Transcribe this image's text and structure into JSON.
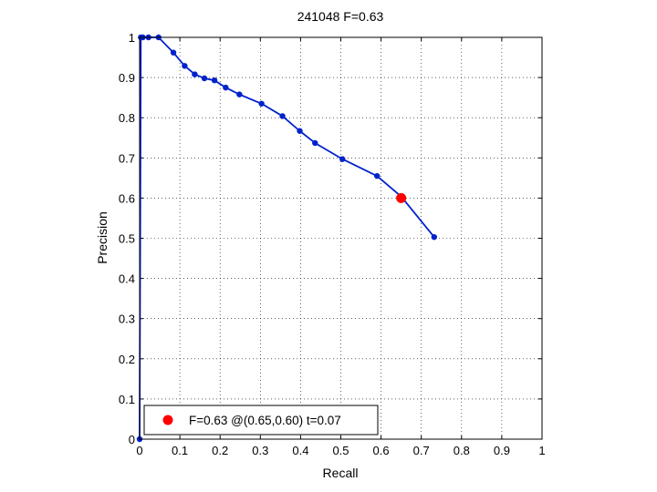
{
  "chart_data": {
    "type": "line",
    "title": "241048 F=0.63",
    "xlabel": "Recall",
    "ylabel": "Precision",
    "xlim": [
      0,
      1
    ],
    "ylim": [
      0,
      1
    ],
    "grid": true,
    "x_ticks": [
      "0",
      "0.1",
      "0.2",
      "0.3",
      "0.4",
      "0.5",
      "0.6",
      "0.7",
      "0.8",
      "0.9",
      "1"
    ],
    "y_ticks": [
      "0",
      "0.1",
      "0.2",
      "0.3",
      "0.4",
      "0.5",
      "0.6",
      "0.7",
      "0.8",
      "0.9",
      "1"
    ],
    "series": [
      {
        "color": "#0022cc",
        "points": [
          [
            0.0,
            0.0
          ],
          [
            0.003,
            1.0
          ],
          [
            0.008,
            1.0
          ],
          [
            0.022,
            1.0
          ],
          [
            0.047,
            1.0
          ],
          [
            0.084,
            0.962
          ],
          [
            0.112,
            0.929
          ],
          [
            0.137,
            0.908
          ],
          [
            0.161,
            0.898
          ],
          [
            0.186,
            0.893
          ],
          [
            0.214,
            0.875
          ],
          [
            0.248,
            0.858
          ],
          [
            0.303,
            0.835
          ],
          [
            0.355,
            0.804
          ],
          [
            0.398,
            0.767
          ],
          [
            0.436,
            0.737
          ],
          [
            0.504,
            0.697
          ],
          [
            0.59,
            0.655
          ],
          [
            0.65,
            0.604
          ],
          [
            0.732,
            0.503
          ]
        ]
      }
    ],
    "optimum": {
      "recall": 0.65,
      "precision": 0.6,
      "color": "#ff0000"
    },
    "legend": {
      "label": "F=0.63 @(0.65,0.60) t=0.07",
      "position": "bottom-left"
    }
  }
}
